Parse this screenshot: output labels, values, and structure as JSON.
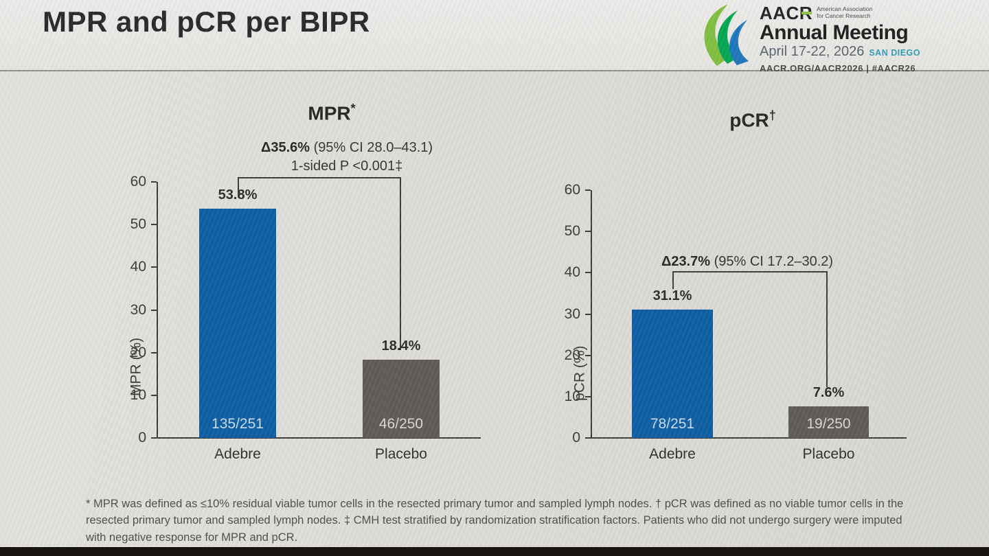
{
  "slide": {
    "title": "MPR and pCR per BIPR",
    "footnote": "* MPR was defined as ≤10% residual viable tumor cells in the resected primary tumor and sampled lymph nodes. † pCR was defined as no viable tumor cells in the resected primary tumor and sampled lymph nodes. ‡ CMH test stratified by randomization stratification factors. Patients who did not undergo surgery were imputed with negative response for MPR and pCR."
  },
  "logo": {
    "acronym": "AACR",
    "org_line1": "American Association",
    "org_line2": "for Cancer Research",
    "event": "Annual Meeting",
    "dates": "April 17-22, 2026",
    "location": "SAN DIEGO",
    "footer": "AACR.ORG/AACR2026  |  #AACR26"
  },
  "colors": {
    "adebre_bar": "#0b5ca2",
    "placebo_bar": "#5d5955",
    "background": "#dedcd9",
    "header_band": "#e8e7e4",
    "axis": "#3b3936",
    "logo_green": "#7fbf3f",
    "logo_teal": "#00a651",
    "logo_blue": "#1b75bb"
  },
  "chart_data": [
    {
      "type": "bar",
      "title": "MPR*",
      "title_main": "MPR",
      "title_sup": "*",
      "xlabel": "",
      "ylabel": "MPR (%)",
      "ylim": [
        0,
        60
      ],
      "yticks": [
        0,
        10,
        20,
        30,
        40,
        50,
        60
      ],
      "categories": [
        "Adebre",
        "Placebo"
      ],
      "values": [
        53.8,
        18.4
      ],
      "bar_labels": [
        "53.8%",
        "18.4%"
      ],
      "bar_inner_labels": [
        "135/251",
        "46/250"
      ],
      "bar_colors": [
        "#0b5ca2",
        "#5d5955"
      ],
      "annotation_delta": "Δ35.6%",
      "annotation_ci": "(95% CI 28.0–43.1)",
      "annotation_pvalue": "1-sided P <0.001‡",
      "grid": false,
      "legend": "none"
    },
    {
      "type": "bar",
      "title": "pCR†",
      "title_main": "pCR",
      "title_sup": "†",
      "xlabel": "",
      "ylabel": "pCR (%)",
      "ylim": [
        0,
        60
      ],
      "yticks": [
        0,
        10,
        20,
        30,
        40,
        50,
        60
      ],
      "categories": [
        "Adebre",
        "Placebo"
      ],
      "values": [
        31.1,
        7.6
      ],
      "bar_labels": [
        "31.1%",
        "7.6%"
      ],
      "bar_inner_labels": [
        "78/251",
        "19/250"
      ],
      "bar_colors": [
        "#0b5ca2",
        "#5d5955"
      ],
      "annotation_delta": "Δ23.7%",
      "annotation_ci": "(95% CI 17.2–30.2)",
      "annotation_pvalue": "",
      "grid": false,
      "legend": "none"
    }
  ]
}
